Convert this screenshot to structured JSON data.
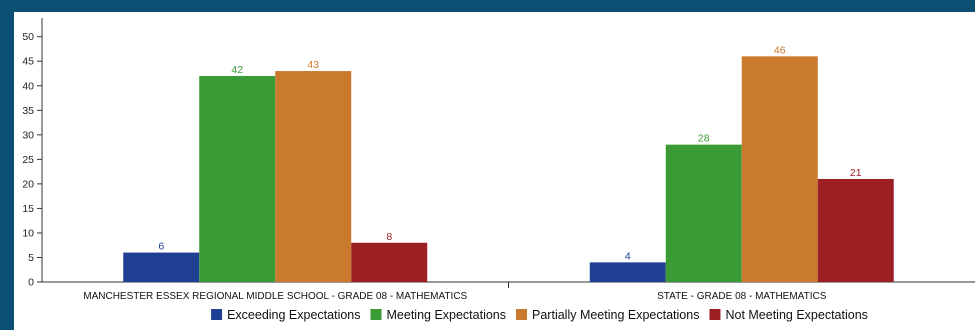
{
  "colors": {
    "frame": "#0b4f73",
    "axis": "#333333"
  },
  "chart_data": {
    "type": "bar",
    "categories": [
      "MANCHESTER ESSEX REGIONAL MIDDLE SCHOOL - GRADE 08 - MATHEMATICS",
      "STATE - GRADE 08 - MATHEMATICS"
    ],
    "series": [
      {
        "name": "Exceeding Expectations",
        "color": "#1f3f93",
        "values": [
          6,
          4
        ]
      },
      {
        "name": "Meeting Expectations",
        "color": "#3a9a36",
        "values": [
          42,
          28
        ]
      },
      {
        "name": "Partially Meeting Expectations",
        "color": "#c97a2c",
        "values": [
          43,
          46
        ]
      },
      {
        "name": "Not Meeting Expectations",
        "color": "#9b1f23",
        "values": [
          8,
          21
        ]
      }
    ],
    "yticks": [
      0,
      5,
      10,
      15,
      20,
      25,
      30,
      35,
      40,
      45,
      50
    ],
    "ylim": [
      0,
      53
    ],
    "grid": false,
    "legend": "bottom"
  }
}
